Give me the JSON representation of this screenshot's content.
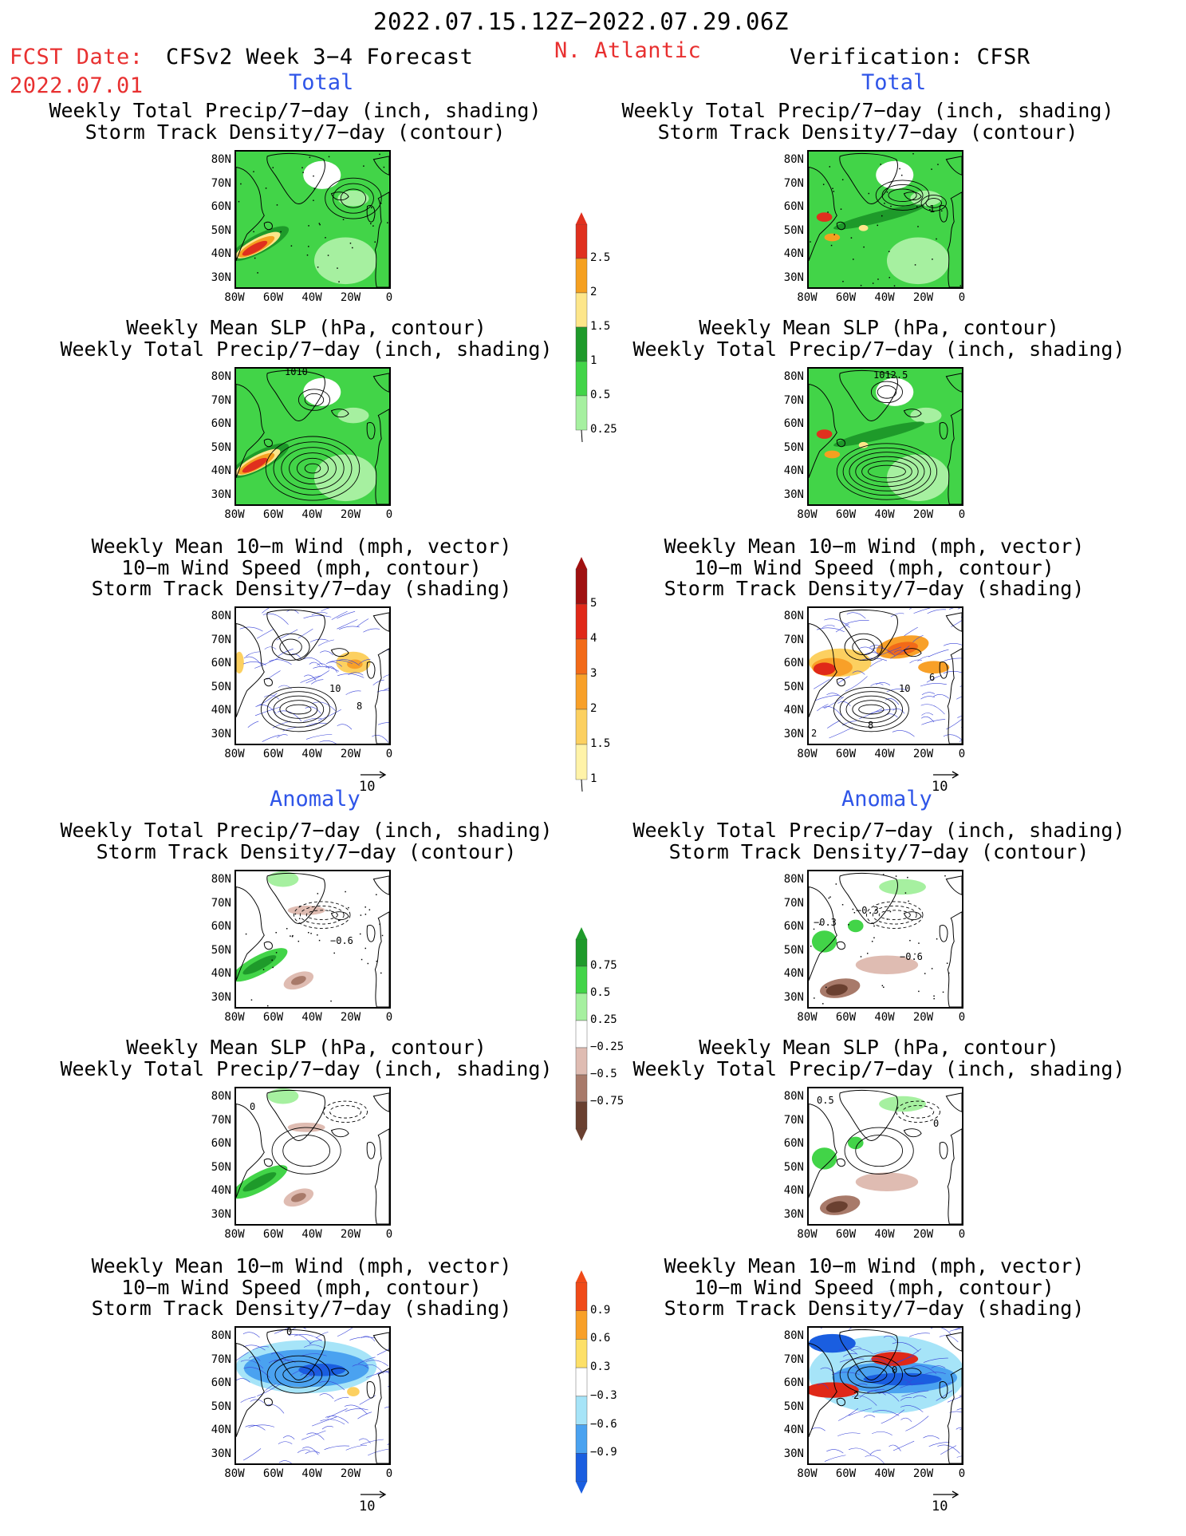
{
  "header": {
    "period": "2022.07.15.12Z−2022.07.29.06Z",
    "fcst_date_label": "FCST Date:",
    "fcst_date_value": "2022.07.01",
    "model": "CFSv2 Week 3−4 Forecast",
    "region": "N. Atlantic",
    "verification": "Verification: CFSR"
  },
  "sections": {
    "total": "Total",
    "anomaly": "Anomaly"
  },
  "titles": {
    "precip_track": [
      "Weekly Total Precip/7−day (inch, shading)",
      "Storm Track Density/7−day (contour)"
    ],
    "slp_precip": [
      "Weekly Mean SLP (hPa, contour)",
      "Weekly Total Precip/7−day (inch, shading)"
    ],
    "wind_track": [
      "Weekly Mean 10−m Wind (mph, vector)",
      "10−m Wind Speed (mph, contour)",
      "Storm Track Density/7−day (shading)"
    ]
  },
  "axes": {
    "lat": [
      "80N",
      "70N",
      "60N",
      "50N",
      "40N",
      "30N"
    ],
    "lon": [
      "80W",
      "60W",
      "40W",
      "20W",
      "0"
    ]
  },
  "vector_ref": "10",
  "contour_labels": {
    "slp_fcst": "1010",
    "slp_obs": "1012.5",
    "track_obs": "1",
    "wind_fcst_a": "10",
    "wind_fcst_b": "8",
    "wind_obs_a": "10",
    "wind_obs_b": "6",
    "wind_obs_c": "8",
    "wind_obs_d": "2",
    "anom_fcst": "−0.6",
    "anom_obs_a": "−0.3",
    "anom_obs_b": "−0.6",
    "anom_obs_c": "−0.3",
    "slp_anom_fcst": "0",
    "slp_anom_obs_a": "0.5",
    "slp_anom_obs_b": "0",
    "wanom_fcst": "0",
    "wanom_obs_a": "0",
    "wanom_obs_b": "2"
  },
  "colorbars": {
    "precip_total": {
      "labels": [
        "2.5",
        "2",
        "1.5",
        "1",
        "0.5",
        "0.25"
      ],
      "colors": [
        "#e0301e",
        "#f5a020",
        "#fde68a",
        "#1e9a2a",
        "#42d448",
        "#a6f0a0"
      ]
    },
    "track_total": {
      "labels": [
        "5",
        "4",
        "3",
        "2",
        "1.5",
        "1"
      ],
      "colors": [
        "#a01010",
        "#e02818",
        "#f26a18",
        "#f8a028",
        "#fcd060",
        "#fff3a8"
      ]
    },
    "precip_anom": {
      "labels": [
        "0.75",
        "0.5",
        "0.25",
        "−0.25",
        "−0.5",
        "−0.75"
      ],
      "colors": [
        "#1e9a2a",
        "#42d448",
        "#a6f0a0",
        "#ffffff",
        "#dfbcb2",
        "#a87a6a",
        "#6a4030"
      ]
    },
    "track_anom": {
      "labels": [
        "0.9",
        "0.6",
        "0.3",
        "−0.3",
        "−0.6",
        "−0.9"
      ],
      "colors": [
        "#f04a18",
        "#f8a028",
        "#fde068",
        "#ffffff",
        "#a6e4f8",
        "#4aa2f0",
        "#1a5ee0"
      ]
    }
  },
  "colors": {
    "header_red": "#e83030",
    "section_blue": "#2f55e8",
    "vector_blue": "#3a44d8"
  }
}
